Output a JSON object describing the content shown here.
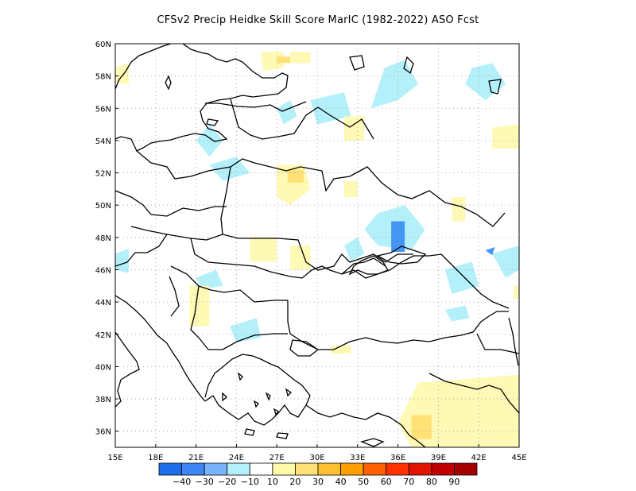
{
  "title": "CFSv2 Precip Heidke Skill Score MarIC (1982-2022) ASO Fcst",
  "map": {
    "lon_range": [
      15,
      45
    ],
    "lat_range": [
      35,
      60
    ],
    "x_ticks": [
      {
        "value": 15,
        "label": "15E"
      },
      {
        "value": 18,
        "label": "18E"
      },
      {
        "value": 21,
        "label": "21E"
      },
      {
        "value": 24,
        "label": "24E"
      },
      {
        "value": 27,
        "label": "27E"
      },
      {
        "value": 30,
        "label": "30E"
      },
      {
        "value": 33,
        "label": "33E"
      },
      {
        "value": 36,
        "label": "36E"
      },
      {
        "value": 39,
        "label": "39E"
      },
      {
        "value": 42,
        "label": "42E"
      },
      {
        "value": 45,
        "label": "45E"
      }
    ],
    "y_ticks": [
      {
        "value": 36,
        "label": "36N"
      },
      {
        "value": 38,
        "label": "38N"
      },
      {
        "value": 40,
        "label": "40N"
      },
      {
        "value": 42,
        "label": "42N"
      },
      {
        "value": 44,
        "label": "44N"
      },
      {
        "value": 46,
        "label": "46N"
      },
      {
        "value": 48,
        "label": "48N"
      },
      {
        "value": 50,
        "label": "50N"
      },
      {
        "value": 52,
        "label": "52N"
      },
      {
        "value": 54,
        "label": "54N"
      },
      {
        "value": 56,
        "label": "56N"
      },
      {
        "value": 58,
        "label": "58N"
      },
      {
        "value": 60,
        "label": "60N"
      }
    ],
    "grid": true,
    "skill_areas": [
      {
        "class": "-10to-20",
        "points": [
          [
            15,
            47
          ],
          [
            16,
            47.3
          ],
          [
            16,
            45.8
          ],
          [
            15,
            46
          ]
        ]
      },
      {
        "class": "-10to-20",
        "points": [
          [
            35,
            58.5
          ],
          [
            36.5,
            59
          ],
          [
            37.5,
            57.5
          ],
          [
            36,
            56.5
          ],
          [
            34,
            56
          ]
        ]
      },
      {
        "class": "-10to-20",
        "points": [
          [
            41.5,
            58.5
          ],
          [
            43,
            58.8
          ],
          [
            44,
            57.5
          ],
          [
            42.5,
            56.5
          ],
          [
            41,
            57.5
          ]
        ]
      },
      {
        "class": "-10to-20",
        "points": [
          [
            29.5,
            56.5
          ],
          [
            32,
            57
          ],
          [
            32.5,
            55.5
          ],
          [
            30,
            55
          ]
        ]
      },
      {
        "class": "-10to-20",
        "points": [
          [
            21,
            54
          ],
          [
            22,
            55
          ],
          [
            23,
            54
          ],
          [
            22,
            53
          ]
        ]
      },
      {
        "class": "-10to-20",
        "points": [
          [
            22,
            52.5
          ],
          [
            24,
            53
          ],
          [
            25,
            52
          ],
          [
            23,
            51.5
          ]
        ]
      },
      {
        "class": "-10to-20",
        "points": [
          [
            27,
            56
          ],
          [
            28,
            56.5
          ],
          [
            28.5,
            55.5
          ],
          [
            27.5,
            55
          ]
        ]
      },
      {
        "class": "-10to-20",
        "points": [
          [
            34.5,
            49.5
          ],
          [
            36.5,
            50
          ],
          [
            38,
            48.5
          ],
          [
            37,
            47.2
          ],
          [
            34.5,
            47.5
          ],
          [
            33.5,
            48.5
          ]
        ]
      },
      {
        "class": "-10to-20",
        "points": [
          [
            32,
            47.5
          ],
          [
            33,
            48
          ],
          [
            33.5,
            47
          ],
          [
            32.5,
            46.5
          ]
        ]
      },
      {
        "class": "-10to-20",
        "points": [
          [
            39.5,
            46
          ],
          [
            41.5,
            46.5
          ],
          [
            42,
            45
          ],
          [
            40,
            44.5
          ]
        ]
      },
      {
        "class": "-10to-20",
        "points": [
          [
            43,
            47
          ],
          [
            45,
            47.5
          ],
          [
            45,
            46
          ],
          [
            44,
            45.5
          ]
        ]
      },
      {
        "class": "-10to-20",
        "points": [
          [
            23.5,
            42.5
          ],
          [
            25.5,
            43
          ],
          [
            25.8,
            41.8
          ],
          [
            24,
            41.5
          ]
        ]
      },
      {
        "class": "-10to-20",
        "points": [
          [
            21,
            45.5
          ],
          [
            22.5,
            46
          ],
          [
            23,
            45
          ],
          [
            21.5,
            44.8
          ]
        ]
      },
      {
        "class": "-10to-20",
        "points": [
          [
            39.5,
            43.5
          ],
          [
            41,
            43.8
          ],
          [
            41.3,
            43
          ],
          [
            40,
            42.8
          ]
        ]
      },
      {
        "class": "-20to-30",
        "points": [
          [
            35.5,
            49
          ],
          [
            36.5,
            49
          ],
          [
            36.5,
            47.1
          ],
          [
            35.5,
            47.1
          ]
        ]
      },
      {
        "class": "-20to-30",
        "points": [
          [
            42.5,
            47.2
          ],
          [
            43.2,
            47.4
          ],
          [
            43,
            46.9
          ]
        ]
      },
      {
        "class": "10to20",
        "points": [
          [
            15,
            58.5
          ],
          [
            16,
            58.8
          ],
          [
            16,
            57.5
          ],
          [
            15,
            57.6
          ]
        ]
      },
      {
        "class": "10to20",
        "points": [
          [
            25.8,
            59.5
          ],
          [
            27.5,
            59.5
          ],
          [
            27.5,
            58.5
          ],
          [
            26,
            58.3
          ]
        ]
      },
      {
        "class": "10to20",
        "points": [
          [
            28,
            59.5
          ],
          [
            29.5,
            59.5
          ],
          [
            29.5,
            58.8
          ],
          [
            28,
            58.8
          ]
        ]
      },
      {
        "class": "10to20",
        "points": [
          [
            32,
            55.5
          ],
          [
            33.5,
            55.5
          ],
          [
            33.5,
            54
          ],
          [
            32,
            54
          ]
        ]
      },
      {
        "class": "10to20",
        "points": [
          [
            43,
            54.8
          ],
          [
            45,
            55
          ],
          [
            45,
            53.5
          ],
          [
            43,
            53.5
          ]
        ]
      },
      {
        "class": "10to20",
        "points": [
          [
            27,
            52.5
          ],
          [
            29,
            52.5
          ],
          [
            29.5,
            51
          ],
          [
            28,
            50
          ],
          [
            27,
            50.5
          ]
        ]
      },
      {
        "class": "10to20",
        "points": [
          [
            32,
            51.5
          ],
          [
            33,
            51.5
          ],
          [
            33,
            50.5
          ],
          [
            32,
            50.5
          ]
        ]
      },
      {
        "class": "10to20",
        "points": [
          [
            25,
            48
          ],
          [
            27,
            48
          ],
          [
            27,
            46.5
          ],
          [
            25,
            46.5
          ]
        ]
      },
      {
        "class": "10to20",
        "points": [
          [
            28,
            47.5
          ],
          [
            29.5,
            47.5
          ],
          [
            29.5,
            46
          ],
          [
            28,
            46
          ]
        ]
      },
      {
        "class": "10to20",
        "points": [
          [
            20.5,
            45
          ],
          [
            22,
            45
          ],
          [
            22,
            42.5
          ],
          [
            20.5,
            42.5
          ]
        ]
      },
      {
        "class": "10to20",
        "points": [
          [
            37.5,
            39
          ],
          [
            45,
            39.5
          ],
          [
            45,
            35
          ],
          [
            37,
            35
          ],
          [
            36,
            36.5
          ]
        ]
      },
      {
        "class": "10to20",
        "points": [
          [
            31,
            41.3
          ],
          [
            32.5,
            41.3
          ],
          [
            32.5,
            40.8
          ],
          [
            31,
            40.8
          ]
        ]
      },
      {
        "class": "10to20",
        "points": [
          [
            40,
            50.5
          ],
          [
            41,
            50.5
          ],
          [
            41,
            49
          ],
          [
            40,
            49
          ]
        ]
      },
      {
        "class": "10to20",
        "points": [
          [
            44.6,
            45
          ],
          [
            45,
            45
          ],
          [
            45,
            44.2
          ],
          [
            44.6,
            44.2
          ]
        ]
      },
      {
        "class": "20to30",
        "points": [
          [
            27.8,
            52.2
          ],
          [
            29,
            52.2
          ],
          [
            29,
            51.4
          ],
          [
            27.8,
            51.4
          ]
        ]
      },
      {
        "class": "20to30",
        "points": [
          [
            37,
            37
          ],
          [
            38.5,
            37
          ],
          [
            38.5,
            35.5
          ],
          [
            37,
            35.5
          ]
        ]
      },
      {
        "class": "20to30",
        "points": [
          [
            27,
            59.2
          ],
          [
            28,
            59.2
          ],
          [
            28,
            58.8
          ],
          [
            27,
            58.8
          ]
        ]
      }
    ],
    "skill_colors": {
      "-30to-40": "#1e6eeb",
      "-20to-30": "#4496f5",
      "-10to-20": "#b4f0fa",
      "10to20": "#fff9b6",
      "20to30": "#ffe178",
      "30to40": "#ffc032"
    }
  },
  "colorbar": {
    "colors": [
      "#1e6eeb",
      "#3c87f5",
      "#78b4fa",
      "#b4f0fa",
      "#ffffff",
      "#fffaaa",
      "#ffe178",
      "#ffc032",
      "#ffa000",
      "#ff6000",
      "#ff3200",
      "#e11400",
      "#c00000",
      "#a50000"
    ],
    "labels": [
      "-40",
      "-30",
      "-20",
      "-10",
      "10",
      "20",
      "30",
      "40",
      "50",
      "60",
      "70",
      "80",
      "90"
    ]
  }
}
